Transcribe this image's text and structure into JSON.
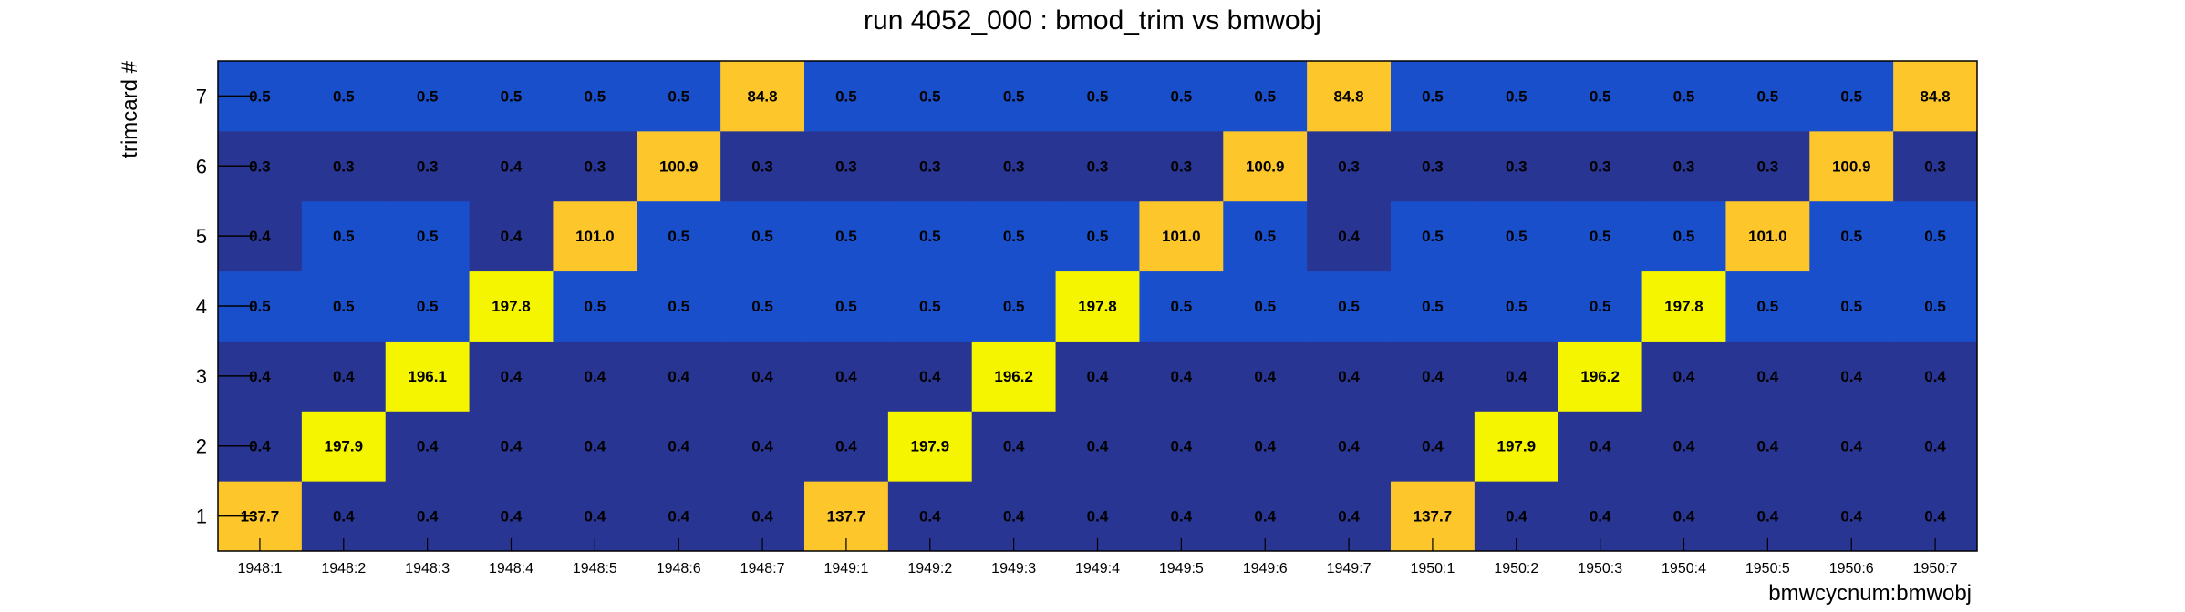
{
  "chart_data": {
    "type": "heatmap",
    "title": "run 4052_000 : bmod_trim vs bmwobj",
    "xlabel": "bmwcycnum:bmwobj",
    "ylabel": "trimcard #",
    "x": [
      "1948:1",
      "1948:2",
      "1948:3",
      "1948:4",
      "1948:5",
      "1948:6",
      "1948:7",
      "1949:1",
      "1949:2",
      "1949:3",
      "1949:4",
      "1949:5",
      "1949:6",
      "1949:7",
      "1950:1",
      "1950:2",
      "1950:3",
      "1950:4",
      "1950:5",
      "1950:6",
      "1950:7"
    ],
    "y": [
      "1",
      "2",
      "3",
      "4",
      "5",
      "6",
      "7"
    ],
    "values": [
      [
        137.7,
        0.4,
        0.4,
        0.4,
        0.4,
        0.4,
        0.4,
        137.7,
        0.4,
        0.4,
        0.4,
        0.4,
        0.4,
        0.4,
        137.7,
        0.4,
        0.4,
        0.4,
        0.4,
        0.4,
        0.4
      ],
      [
        0.4,
        197.9,
        0.4,
        0.4,
        0.4,
        0.4,
        0.4,
        0.4,
        197.9,
        0.4,
        0.4,
        0.4,
        0.4,
        0.4,
        0.4,
        197.9,
        0.4,
        0.4,
        0.4,
        0.4,
        0.4
      ],
      [
        0.4,
        0.4,
        196.1,
        0.4,
        0.4,
        0.4,
        0.4,
        0.4,
        0.4,
        196.2,
        0.4,
        0.4,
        0.4,
        0.4,
        0.4,
        0.4,
        196.2,
        0.4,
        0.4,
        0.4,
        0.4
      ],
      [
        0.5,
        0.5,
        0.5,
        197.8,
        0.5,
        0.5,
        0.5,
        0.5,
        0.5,
        0.5,
        197.8,
        0.5,
        0.5,
        0.5,
        0.5,
        0.5,
        0.5,
        197.8,
        0.5,
        0.5,
        0.5
      ],
      [
        0.4,
        0.5,
        0.5,
        0.4,
        101.0,
        0.5,
        0.5,
        0.5,
        0.5,
        0.5,
        0.5,
        101.0,
        0.5,
        0.4,
        0.5,
        0.5,
        0.5,
        0.5,
        101.0,
        0.5,
        0.5
      ],
      [
        0.3,
        0.3,
        0.3,
        0.4,
        0.3,
        100.9,
        0.3,
        0.3,
        0.3,
        0.3,
        0.3,
        0.3,
        100.9,
        0.3,
        0.3,
        0.3,
        0.3,
        0.3,
        0.3,
        100.9,
        0.3
      ],
      [
        0.5,
        0.5,
        0.5,
        0.5,
        0.5,
        0.5,
        84.8,
        0.5,
        0.5,
        0.5,
        0.5,
        0.5,
        0.5,
        84.8,
        0.5,
        0.5,
        0.5,
        0.5,
        0.5,
        0.5,
        84.8
      ]
    ],
    "cell_label_format": "%.1f",
    "colors": {
      "low": "#283593",
      "mid_low": "#1a4fcc",
      "mid": "#fdc72b",
      "high": "#f5f500"
    },
    "grid": false,
    "legend": "none"
  }
}
